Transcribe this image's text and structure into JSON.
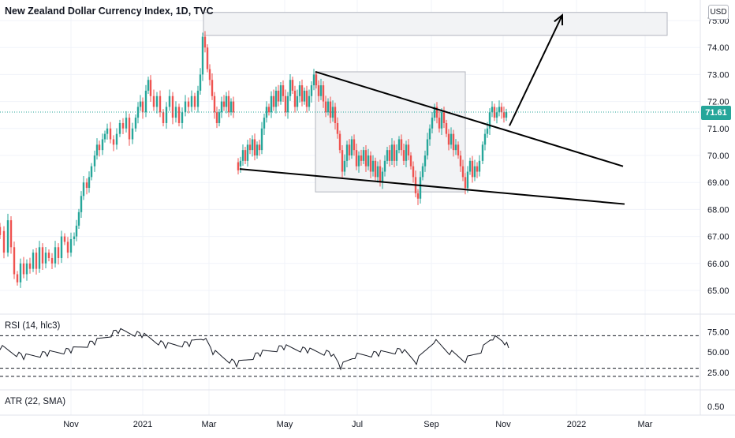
{
  "header": {
    "title": "New Zealand Dollar Currency Index, 1D, TVC",
    "currency": "USD",
    "last_price_label": "71.61"
  },
  "indicators": {
    "rsi_label": "RSI (14, hlc3)",
    "atr_label": "ATR (22, SMA)"
  },
  "colors": {
    "up": "#26a69a",
    "down": "#ef5350",
    "grid": "#f0f3fa",
    "box_fill": "#f2f3f5",
    "box_stroke": "#b2b5be",
    "price_line": "#26a69a",
    "drawing": "#000000"
  },
  "chart_data": [
    {
      "type": "candlestick",
      "title": "New Zealand Dollar Currency Index, 1D, TVC",
      "x_tick_labels": [
        "Nov",
        "2021",
        "Mar",
        "May",
        "Jul",
        "Sep",
        "Nov",
        "2022",
        "Mar"
      ],
      "y_tick_labels": [
        "65.00",
        "66.00",
        "67.00",
        "68.00",
        "69.00",
        "70.00",
        "71.00",
        "72.00",
        "73.00",
        "74.00",
        "75.00"
      ],
      "ylim": [
        64.5,
        75.3
      ],
      "last_price": 71.61,
      "price_path": [
        [
          0,
          67.2
        ],
        [
          5,
          66.4
        ],
        [
          10,
          67.6
        ],
        [
          14,
          66.6
        ],
        [
          18,
          65.6
        ],
        [
          22,
          65.3
        ],
        [
          26,
          66.0
        ],
        [
          30,
          65.6
        ],
        [
          34,
          66.0
        ],
        [
          38,
          65.8
        ],
        [
          42,
          66.4
        ],
        [
          46,
          65.8
        ],
        [
          50,
          66.6
        ],
        [
          54,
          66.0
        ],
        [
          58,
          66.4
        ],
        [
          62,
          66.2
        ],
        [
          66,
          66.0
        ],
        [
          70,
          66.6
        ],
        [
          74,
          66.2
        ],
        [
          78,
          67.0
        ],
        [
          82,
          66.8
        ],
        [
          86,
          66.4
        ],
        [
          90,
          66.9
        ],
        [
          94,
          67.0
        ],
        [
          97,
          67.4
        ],
        [
          100,
          67.9
        ],
        [
          103,
          68.5
        ],
        [
          106,
          69.0
        ],
        [
          110,
          68.8
        ],
        [
          113,
          69.2
        ],
        [
          116,
          69.6
        ],
        [
          120,
          70.0
        ],
        [
          123,
          70.4
        ],
        [
          126,
          70.2
        ],
        [
          130,
          70.6
        ],
        [
          133,
          70.8
        ],
        [
          136,
          71.0
        ],
        [
          140,
          70.6
        ],
        [
          144,
          70.4
        ],
        [
          148,
          70.8
        ],
        [
          152,
          71.2
        ],
        [
          156,
          71.0
        ],
        [
          160,
          71.4
        ],
        [
          164,
          70.6
        ],
        [
          168,
          71.0
        ],
        [
          172,
          71.4
        ],
        [
          175,
          71.8
        ],
        [
          178,
          72.0
        ],
        [
          181,
          71.6
        ],
        [
          185,
          72.4
        ],
        [
          188,
          72.8
        ],
        [
          191,
          72.2
        ],
        [
          195,
          71.8
        ],
        [
          199,
          72.2
        ],
        [
          203,
          71.6
        ],
        [
          207,
          71.2
        ],
        [
          211,
          71.8
        ],
        [
          215,
          72.2
        ],
        [
          219,
          71.4
        ],
        [
          223,
          71.8
        ],
        [
          227,
          71.2
        ],
        [
          231,
          71.6
        ],
        [
          235,
          72.0
        ],
        [
          239,
          71.8
        ],
        [
          243,
          72.2
        ],
        [
          247,
          71.8
        ],
        [
          251,
          72.4
        ],
        [
          254,
          73.0
        ],
        [
          257,
          74.4
        ],
        [
          260,
          74.0
        ],
        [
          263,
          73.2
        ],
        [
          266,
          72.8
        ],
        [
          269,
          72.2
        ],
        [
          272,
          71.6
        ],
        [
          275,
          71.2
        ],
        [
          278,
          71.6
        ],
        [
          281,
          72.0
        ],
        [
          284,
          71.8
        ],
        [
          287,
          72.2
        ],
        [
          290,
          71.6
        ],
        [
          293,
          72.0
        ],
        [
          296,
          71.6
        ],
        [
          302,
          69.6
        ],
        [
          305,
          69.8
        ],
        [
          308,
          70.2
        ],
        [
          311,
          69.8
        ],
        [
          314,
          70.4
        ],
        [
          317,
          70.2
        ],
        [
          320,
          70.6
        ],
        [
          323,
          70.0
        ],
        [
          326,
          70.4
        ],
        [
          329,
          70.2
        ],
        [
          332,
          71.0
        ],
        [
          335,
          71.4
        ],
        [
          338,
          71.8
        ],
        [
          341,
          71.6
        ],
        [
          344,
          72.2
        ],
        [
          347,
          71.8
        ],
        [
          350,
          72.4
        ],
        [
          353,
          72.0
        ],
        [
          356,
          72.6
        ],
        [
          359,
          72.2
        ],
        [
          362,
          71.6
        ],
        [
          365,
          72.2
        ],
        [
          368,
          72.8
        ],
        [
          371,
          72.4
        ],
        [
          374,
          71.8
        ],
        [
          377,
          72.2
        ],
        [
          380,
          72.6
        ],
        [
          383,
          72.0
        ],
        [
          386,
          72.4
        ],
        [
          389,
          71.8
        ],
        [
          392,
          72.2
        ],
        [
          395,
          72.6
        ],
        [
          398,
          73.0
        ],
        [
          401,
          72.6
        ],
        [
          404,
          72.2
        ],
        [
          407,
          72.6
        ],
        [
          410,
          72.0
        ],
        [
          413,
          71.6
        ],
        [
          416,
          72.0
        ],
        [
          419,
          71.4
        ],
        [
          422,
          71.8
        ],
        [
          425,
          71.2
        ],
        [
          428,
          70.8
        ],
        [
          431,
          70.2
        ],
        [
          434,
          69.4
        ],
        [
          437,
          69.8
        ],
        [
          440,
          70.4
        ],
        [
          443,
          70.0
        ],
        [
          446,
          70.6
        ],
        [
          449,
          70.2
        ],
        [
          452,
          69.6
        ],
        [
          455,
          70.0
        ],
        [
          458,
          69.8
        ],
        [
          461,
          70.2
        ],
        [
          464,
          69.6
        ],
        [
          467,
          70.0
        ],
        [
          470,
          69.4
        ],
        [
          473,
          69.8
        ],
        [
          476,
          69.2
        ],
        [
          479,
          69.6
        ],
        [
          482,
          69.0
        ],
        [
          485,
          69.4
        ],
        [
          488,
          69.8
        ],
        [
          491,
          70.2
        ],
        [
          494,
          69.8
        ],
        [
          497,
          70.4
        ],
        [
          500,
          69.8
        ],
        [
          503,
          70.2
        ],
        [
          506,
          70.6
        ],
        [
          509,
          70.2
        ],
        [
          512,
          69.8
        ],
        [
          515,
          70.4
        ],
        [
          518,
          70.0
        ],
        [
          521,
          69.6
        ],
        [
          524,
          69.2
        ],
        [
          527,
          68.6
        ],
        [
          530,
          68.4
        ],
        [
          533,
          69.2
        ],
        [
          536,
          69.6
        ],
        [
          539,
          70.0
        ],
        [
          542,
          70.6
        ],
        [
          545,
          71.0
        ],
        [
          548,
          71.4
        ],
        [
          551,
          71.8
        ],
        [
          554,
          71.4
        ],
        [
          557,
          71.0
        ],
        [
          560,
          71.6
        ],
        [
          563,
          71.2
        ],
        [
          566,
          70.8
        ],
        [
          569,
          70.4
        ],
        [
          572,
          70.8
        ],
        [
          575,
          70.2
        ],
        [
          578,
          70.4
        ],
        [
          581,
          70.0
        ],
        [
          584,
          69.6
        ],
        [
          587,
          69.2
        ],
        [
          590,
          68.8
        ],
        [
          593,
          69.4
        ],
        [
          596,
          69.8
        ],
        [
          599,
          69.2
        ],
        [
          602,
          69.6
        ],
        [
          605,
          69.4
        ],
        [
          608,
          69.8
        ],
        [
          612,
          70.4
        ],
        [
          615,
          70.8
        ],
        [
          618,
          71.0
        ],
        [
          621,
          71.6
        ],
        [
          624,
          71.8
        ],
        [
          627,
          71.4
        ],
        [
          630,
          71.6
        ],
        [
          633,
          71.8
        ],
        [
          636,
          71.6
        ],
        [
          639,
          71.4
        ],
        [
          642,
          71.61
        ]
      ],
      "drawings": {
        "wedge_upper": [
          [
            400,
            73.1
          ],
          [
            790,
            69.6
          ]
        ],
        "wedge_lower": [
          [
            304,
            69.5
          ],
          [
            792,
            68.2
          ]
        ],
        "projection_arrow": [
          [
            646,
            71.1
          ],
          [
            713,
            75.2
          ]
        ],
        "pattern_box": [
          [
            400,
            73.1
          ],
          [
            590,
            68.65
          ]
        ],
        "target_zone": [
          [
            258,
            75.3
          ],
          [
            846,
            74.45
          ]
        ]
      }
    },
    {
      "type": "line",
      "title": "RSI (14, hlc3)",
      "y_tick_labels": [
        "75.00",
        "50.00",
        "25.00"
      ],
      "ylim": [
        15,
        85
      ],
      "levels": [
        70,
        30,
        20
      ],
      "x": [
        0,
        30,
        60,
        90,
        120,
        150,
        180,
        210,
        240,
        258,
        270,
        300,
        330,
        360,
        390,
        420,
        432,
        450,
        480,
        510,
        528,
        550,
        570,
        590,
        610,
        625,
        640,
        645
      ],
      "values": [
        56,
        44,
        48,
        52,
        62,
        76,
        71,
        58,
        60,
        68,
        50,
        35,
        48,
        56,
        52,
        48,
        32,
        45,
        48,
        52,
        38,
        64,
        50,
        40,
        52,
        68,
        62,
        55
      ]
    },
    {
      "type": "line",
      "title": "ATR (22, SMA)",
      "y_tick_labels": [
        "0.50"
      ],
      "ylim": [
        0.4,
        0.6
      ]
    }
  ]
}
